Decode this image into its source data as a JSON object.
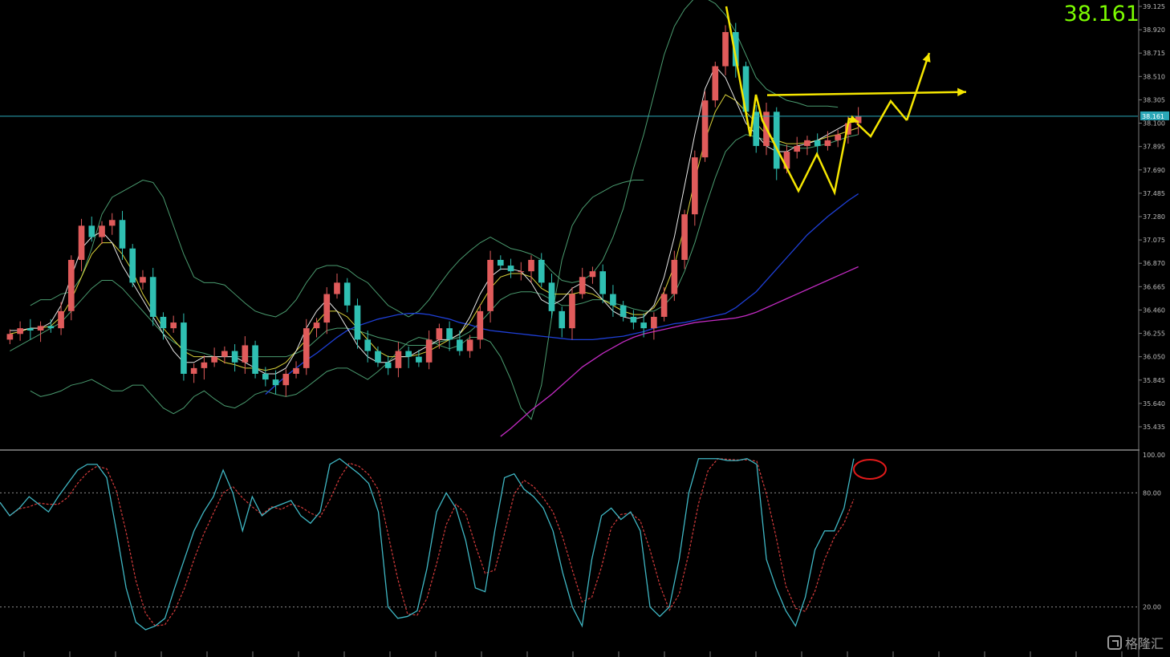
{
  "chart_data": [
    {
      "type": "candlestick",
      "title": "",
      "current_price": "38.161",
      "current_price_value": 38.161,
      "ylim": [
        35.33,
        39.14
      ],
      "y_ticks": [
        "39.125",
        "38.920",
        "38.715",
        "38.510",
        "38.305",
        "38.100",
        "37.895",
        "37.690",
        "37.485",
        "37.280",
        "37.075",
        "36.870",
        "36.665",
        "36.460",
        "36.255",
        "36.050",
        "35.845",
        "35.640",
        "35.435"
      ],
      "y_tick_values": [
        39.125,
        38.92,
        38.715,
        38.51,
        38.305,
        38.1,
        37.895,
        37.69,
        37.485,
        37.28,
        37.075,
        36.87,
        36.665,
        36.46,
        36.255,
        36.05,
        35.845,
        35.64,
        35.435
      ],
      "up_color": "#e05b5b",
      "down_color": "#2fbfb2",
      "price_line_color": "#2aa7b8",
      "close": [
        36.25,
        36.3,
        36.28,
        36.32,
        36.3,
        36.45,
        36.9,
        37.2,
        37.1,
        37.2,
        37.25,
        37.0,
        36.7,
        36.75,
        36.4,
        36.3,
        36.35,
        35.9,
        35.95,
        36.0,
        36.05,
        36.1,
        36.0,
        36.15,
        35.9,
        35.85,
        35.8,
        35.9,
        35.95,
        36.3,
        36.35,
        36.6,
        36.7,
        36.5,
        36.2,
        36.1,
        36.0,
        35.95,
        36.1,
        36.05,
        36.0,
        36.2,
        36.3,
        36.2,
        36.1,
        36.2,
        36.45,
        36.9,
        36.85,
        36.8,
        36.8,
        36.9,
        36.7,
        36.45,
        36.3,
        36.6,
        36.75,
        36.8,
        36.6,
        36.5,
        36.4,
        36.35,
        36.3,
        36.4,
        36.6,
        36.9,
        37.3,
        37.8,
        38.3,
        38.6,
        38.9,
        38.6,
        38.2,
        37.9,
        38.2,
        37.7,
        37.85,
        37.9,
        37.95,
        37.9,
        37.95,
        38.0,
        38.1,
        38.161
      ],
      "sma_fast": [
        36.28,
        36.28,
        36.3,
        36.3,
        36.35,
        36.5,
        36.75,
        37.0,
        37.1,
        37.15,
        37.05,
        36.85,
        36.7,
        36.55,
        36.4,
        36.25,
        36.1,
        36.0,
        36.0,
        36.05,
        36.05,
        36.05,
        36.05,
        36.0,
        35.95,
        35.9,
        35.9,
        35.95,
        36.1,
        36.3,
        36.45,
        36.55,
        36.45,
        36.3,
        36.15,
        36.05,
        36.0,
        36.0,
        36.05,
        36.05,
        36.1,
        36.15,
        36.2,
        36.2,
        36.25,
        36.4,
        36.6,
        36.75,
        36.82,
        36.82,
        36.8,
        36.7,
        36.55,
        36.5,
        36.55,
        36.65,
        36.7,
        36.65,
        36.55,
        36.45,
        36.4,
        36.38,
        36.4,
        36.5,
        36.75,
        37.1,
        37.55,
        38.0,
        38.4,
        38.6,
        38.5,
        38.3,
        38.1,
        38.0,
        37.9,
        37.85,
        37.85,
        37.9,
        37.92,
        37.95,
        38.0,
        38.05,
        38.1,
        38.13
      ],
      "sma_slow": [
        36.25,
        36.27,
        36.3,
        36.3,
        36.32,
        36.4,
        36.55,
        36.75,
        36.95,
        37.05,
        37.05,
        36.95,
        36.8,
        36.6,
        36.45,
        36.3,
        36.2,
        36.1,
        36.05,
        36.05,
        36.05,
        36.0,
        35.98,
        35.95,
        35.95,
        35.93,
        35.95,
        36.0,
        36.1,
        36.2,
        36.35,
        36.45,
        36.45,
        36.4,
        36.3,
        36.2,
        36.1,
        36.05,
        36.05,
        36.05,
        36.07,
        36.1,
        36.15,
        36.2,
        36.25,
        36.35,
        36.5,
        36.65,
        36.75,
        36.78,
        36.78,
        36.75,
        36.65,
        36.6,
        36.6,
        36.6,
        36.62,
        36.6,
        36.55,
        36.5,
        36.45,
        36.42,
        36.42,
        36.48,
        36.62,
        36.85,
        37.2,
        37.6,
        37.95,
        38.2,
        38.35,
        38.3,
        38.2,
        38.1,
        38.0,
        37.95,
        37.92,
        37.92,
        37.93,
        37.95,
        37.98,
        38.0,
        38.03,
        38.06
      ],
      "bb_mid": [
        36.1,
        36.15,
        36.2,
        36.25,
        36.3,
        36.35,
        36.45,
        36.55,
        36.65,
        36.72,
        36.72,
        36.65,
        36.55,
        36.45,
        36.35,
        36.25,
        36.18,
        36.12,
        36.1,
        36.08,
        36.05,
        36.05,
        36.05,
        36.05,
        36.05,
        36.05,
        36.05,
        36.05,
        36.08,
        36.12,
        36.2,
        36.28,
        36.3,
        36.3,
        36.28,
        36.25,
        36.22,
        36.2,
        36.18,
        36.15,
        36.15,
        36.15,
        36.18,
        36.2,
        36.22,
        36.27,
        36.35,
        36.45,
        36.55,
        36.6,
        36.62,
        36.62,
        36.6,
        36.55,
        36.5,
        36.5,
        36.52,
        36.55,
        36.55,
        36.52,
        36.5,
        36.47,
        36.45,
        36.45,
        36.5,
        36.6,
        36.8,
        37.05,
        37.35,
        37.62,
        37.85,
        37.95,
        38.0,
        37.98,
        37.95,
        37.92,
        37.9,
        37.88,
        37.88,
        37.9,
        37.92,
        37.95,
        37.98,
        38.0
      ],
      "bb_upper": [
        36.5,
        36.55,
        36.55,
        36.6,
        36.62,
        36.75,
        37.0,
        37.3,
        37.45,
        37.5,
        37.55,
        37.6,
        37.58,
        37.45,
        37.2,
        36.95,
        36.75,
        36.7,
        36.7,
        36.68,
        36.6,
        36.52,
        36.45,
        36.42,
        36.4,
        36.45,
        36.55,
        36.7,
        36.82,
        36.85,
        36.85,
        36.82,
        36.75,
        36.7,
        36.6,
        36.5,
        36.45,
        36.4,
        36.45,
        36.55,
        36.68,
        36.8,
        36.9,
        36.98,
        37.05,
        37.1,
        37.05,
        37.0,
        36.98,
        36.95,
        36.9,
        36.8,
        36.72,
        36.7,
        36.72,
        36.78,
        36.9,
        37.1,
        37.35,
        37.7,
        38.0,
        38.35,
        38.7,
        38.95,
        39.1,
        39.2,
        39.2,
        39.15,
        39.05,
        38.9,
        38.7,
        38.5,
        38.4,
        38.35,
        38.3,
        38.28,
        38.25,
        38.25,
        38.25,
        38.24
      ],
      "bb_lower": [
        35.75,
        35.7,
        35.72,
        35.75,
        35.8,
        35.82,
        35.85,
        35.8,
        35.75,
        35.75,
        35.8,
        35.8,
        35.7,
        35.6,
        35.55,
        35.6,
        35.7,
        35.75,
        35.68,
        35.62,
        35.6,
        35.65,
        35.72,
        35.75,
        35.72,
        35.7,
        35.72,
        35.78,
        35.85,
        35.92,
        35.95,
        35.95,
        35.9,
        35.85,
        35.92,
        36.0,
        36.1,
        36.18,
        36.22,
        36.2,
        36.15,
        36.12,
        36.15,
        36.22,
        36.22,
        36.18,
        36.05,
        35.85,
        35.6,
        35.5,
        35.8,
        36.4,
        36.9,
        37.2,
        37.35,
        37.45,
        37.5,
        37.55,
        37.58,
        37.6,
        37.6
      ],
      "ma_blue": [
        35.72,
        35.8,
        35.88,
        35.95,
        36.02,
        36.08,
        36.15,
        36.22,
        36.28,
        36.32,
        36.35,
        36.38,
        36.4,
        36.42,
        36.43,
        36.43,
        36.42,
        36.4,
        36.38,
        36.35,
        36.33,
        36.3,
        36.28,
        36.27,
        36.26,
        36.25,
        36.24,
        36.23,
        36.22,
        36.21,
        36.2,
        36.2,
        36.2,
        36.21,
        36.22,
        36.23,
        36.25,
        36.27,
        36.3,
        36.32,
        36.34,
        36.35,
        36.37,
        36.39,
        36.41,
        36.43,
        36.48,
        36.55,
        36.62,
        36.72,
        36.82,
        36.92,
        37.02,
        37.12,
        37.2,
        37.28,
        37.35,
        37.42,
        37.48
      ],
      "ma_magenta": [
        35.35,
        35.42,
        35.5,
        35.58,
        35.65,
        35.72,
        35.8,
        35.88,
        35.96,
        36.02,
        36.08,
        36.13,
        36.18,
        36.22,
        36.25,
        36.27,
        36.29,
        36.31,
        36.33,
        36.35,
        36.36,
        36.37,
        36.38,
        36.39,
        36.41,
        36.44,
        36.48,
        36.52,
        36.56,
        36.6,
        36.64,
        36.68,
        36.72,
        36.76,
        36.8,
        36.84
      ],
      "annotations": {
        "resistance_line": "yellow horizontal line near 38.36 with arrow pointing right",
        "forecast_path": "yellow zigzag projection with upward arrow"
      }
    },
    {
      "type": "line",
      "title": "",
      "ylim": [
        0,
        100
      ],
      "y_ticks": [
        "100.00",
        "80.00",
        "20.00"
      ],
      "y_tick_values": [
        100,
        80,
        20
      ],
      "levels": [
        80,
        20
      ],
      "k_color": "#3fb7c4",
      "d_color": "#d43b3b",
      "k_values": [
        75,
        68,
        72,
        78,
        74,
        70,
        78,
        85,
        92,
        95,
        95,
        88,
        60,
        30,
        12,
        8,
        10,
        14,
        30,
        45,
        60,
        70,
        78,
        92,
        80,
        60,
        78,
        68,
        72,
        74,
        76,
        68,
        64,
        70,
        95,
        98,
        94,
        90,
        85,
        70,
        20,
        14,
        15,
        18,
        40,
        70,
        80,
        72,
        55,
        30,
        28,
        60,
        88,
        90,
        82,
        78,
        72,
        60,
        38,
        20,
        10,
        45,
        68,
        72,
        66,
        70,
        60,
        20,
        15,
        20,
        45,
        80,
        98,
        98,
        98,
        97,
        97,
        98,
        95,
        45,
        30,
        18,
        10,
        25,
        50,
        60,
        60,
        72,
        98
      ]
    }
  ],
  "watermark": {
    "text": "格隆汇"
  }
}
